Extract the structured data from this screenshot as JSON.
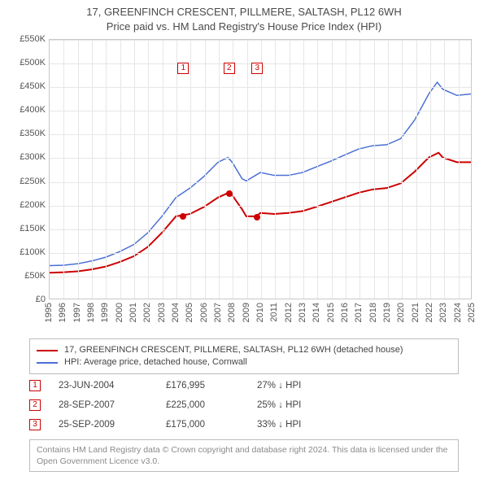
{
  "title": {
    "line1": "17, GREENFINCH CRESCENT, PILLMERE, SALTASH, PL12 6WH",
    "line2": "Price paid vs. HM Land Registry's House Price Index (HPI)"
  },
  "chart": {
    "type": "line",
    "background_color": "#ffffff",
    "grid_color": "#e6e6e6",
    "axis_color": "#c8c8c8",
    "label_fontsize": 11,
    "x": {
      "min": 1995,
      "max": 2025,
      "tick_step": 1
    },
    "y": {
      "min": 0,
      "max": 550000,
      "tick_step": 50000,
      "tick_labels": [
        "£0",
        "£50K",
        "£100K",
        "£150K",
        "£200K",
        "£250K",
        "£300K",
        "£350K",
        "£400K",
        "£450K",
        "£500K",
        "£550K"
      ]
    },
    "series": [
      {
        "id": "property",
        "label": "17, GREENFINCH CRESCENT, PILLMERE, SALTASH, PL12 6WH (detached house)",
        "color": "#cc0000",
        "line_width": 2,
        "points": [
          [
            1995,
            55000
          ],
          [
            1996,
            56000
          ],
          [
            1997,
            58000
          ],
          [
            1998,
            62000
          ],
          [
            1999,
            68000
          ],
          [
            2000,
            78000
          ],
          [
            2001,
            90000
          ],
          [
            2002,
            110000
          ],
          [
            2003,
            140000
          ],
          [
            2004,
            175000
          ],
          [
            2004.48,
            176995
          ],
          [
            2005,
            180000
          ],
          [
            2006,
            195000
          ],
          [
            2007,
            215000
          ],
          [
            2007.74,
            225000
          ],
          [
            2008,
            220000
          ],
          [
            2008.7,
            190000
          ],
          [
            2009,
            175000
          ],
          [
            2009.73,
            175000
          ],
          [
            2010,
            182000
          ],
          [
            2011,
            180000
          ],
          [
            2012,
            182000
          ],
          [
            2013,
            186000
          ],
          [
            2014,
            195000
          ],
          [
            2015,
            205000
          ],
          [
            2016,
            215000
          ],
          [
            2017,
            225000
          ],
          [
            2018,
            232000
          ],
          [
            2019,
            235000
          ],
          [
            2020,
            245000
          ],
          [
            2021,
            270000
          ],
          [
            2022,
            300000
          ],
          [
            2022.7,
            310000
          ],
          [
            2023,
            300000
          ],
          [
            2024,
            290000
          ],
          [
            2025,
            290000
          ]
        ]
      },
      {
        "id": "hpi",
        "label": "HPI: Average price, detached house, Cornwall",
        "color": "#4a6fd4",
        "line_width": 1.5,
        "points": [
          [
            1995,
            70000
          ],
          [
            1996,
            71000
          ],
          [
            1997,
            74000
          ],
          [
            1998,
            80000
          ],
          [
            1999,
            88000
          ],
          [
            2000,
            100000
          ],
          [
            2001,
            115000
          ],
          [
            2002,
            140000
          ],
          [
            2003,
            175000
          ],
          [
            2004,
            215000
          ],
          [
            2005,
            235000
          ],
          [
            2006,
            260000
          ],
          [
            2007,
            290000
          ],
          [
            2007.7,
            300000
          ],
          [
            2008,
            290000
          ],
          [
            2008.7,
            255000
          ],
          [
            2009,
            250000
          ],
          [
            2010,
            268000
          ],
          [
            2011,
            262000
          ],
          [
            2012,
            262000
          ],
          [
            2013,
            268000
          ],
          [
            2014,
            280000
          ],
          [
            2015,
            292000
          ],
          [
            2016,
            305000
          ],
          [
            2017,
            318000
          ],
          [
            2018,
            325000
          ],
          [
            2019,
            327000
          ],
          [
            2020,
            340000
          ],
          [
            2021,
            380000
          ],
          [
            2022,
            435000
          ],
          [
            2022.6,
            460000
          ],
          [
            2023,
            445000
          ],
          [
            2024,
            432000
          ],
          [
            2025,
            435000
          ]
        ]
      }
    ],
    "sale_markers": [
      {
        "n": "1",
        "year": 2004.48,
        "price": 176995,
        "label_y": 490000
      },
      {
        "n": "2",
        "year": 2007.74,
        "price": 225000,
        "label_y": 490000
      },
      {
        "n": "3",
        "year": 2009.73,
        "price": 175000,
        "label_y": 490000
      }
    ]
  },
  "legend": {
    "rows": [
      {
        "color": "#cc0000",
        "label_path": "chart.series.0.label"
      },
      {
        "color": "#4a6fd4",
        "label_path": "chart.series.1.label"
      }
    ]
  },
  "sales": [
    {
      "n": "1",
      "date": "23-JUN-2004",
      "price": "£176,995",
      "diff": "27% ↓ HPI"
    },
    {
      "n": "2",
      "date": "28-SEP-2007",
      "price": "£225,000",
      "diff": "25% ↓ HPI"
    },
    {
      "n": "3",
      "date": "25-SEP-2009",
      "price": "£175,000",
      "diff": "33% ↓ HPI"
    }
  ],
  "footnote": "Contains HM Land Registry data © Crown copyright and database right 2024. This data is licensed under the Open Government Licence v3.0."
}
